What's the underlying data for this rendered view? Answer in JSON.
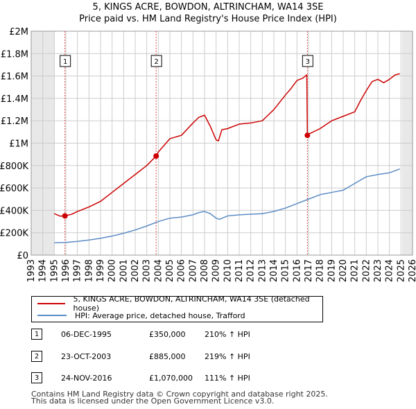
{
  "header": {
    "title_line1": "5, KINGS ACRE, BOWDON, ALTRINCHAM, WA14 3SE",
    "title_line2": "Price paid vs. HM Land Registry's House Price Index (HPI)"
  },
  "colors": {
    "property_line": "#cc0000",
    "hpi_line": "#5b8bc5",
    "grid": "#cccccc",
    "shade": "#e8e8e8",
    "marker_line": "#dd4444"
  },
  "chart_data": {
    "type": "line",
    "xlim": [
      1993,
      2026
    ],
    "ylim": [
      0,
      2000000
    ],
    "y_ticks": [
      {
        "value": 0,
        "label": "£0"
      },
      {
        "value": 200000,
        "label": "£200K"
      },
      {
        "value": 400000,
        "label": "£400K"
      },
      {
        "value": 600000,
        "label": "£600K"
      },
      {
        "value": 800000,
        "label": "£800K"
      },
      {
        "value": 1000000,
        "label": "£1M"
      },
      {
        "value": 1200000,
        "label": "£1.2M"
      },
      {
        "value": 1400000,
        "label": "£1.4M"
      },
      {
        "value": 1600000,
        "label": "£1.6M"
      },
      {
        "value": 1800000,
        "label": "£1.8M"
      },
      {
        "value": 2000000,
        "label": "£2M"
      }
    ],
    "x_ticks": [
      "1993",
      "1994",
      "1995",
      "1996",
      "1997",
      "1998",
      "1999",
      "2000",
      "2001",
      "2002",
      "2003",
      "2004",
      "2005",
      "2006",
      "2007",
      "2008",
      "2009",
      "2010",
      "2011",
      "2012",
      "2013",
      "2014",
      "2015",
      "2016",
      "2017",
      "2018",
      "2019",
      "2020",
      "2021",
      "2022",
      "2023",
      "2024",
      "2025",
      "2026"
    ],
    "shaded_ranges": [
      [
        1993,
        1995.0
      ],
      [
        2025.1,
        2026
      ]
    ],
    "series": [
      {
        "name": "5, KINGS ACRE, BOWDON, ALTRINCHAM, WA14 3SE (detached house)",
        "color": "#cc0000",
        "x": [
          1995.0,
          1995.5,
          1995.92,
          1996.5,
          1997,
          1998,
          1999,
          2000,
          2001,
          2002,
          2003,
          2003.81,
          2004,
          2004.5,
          2005,
          2006,
          2007,
          2007.5,
          2008,
          2008.5,
          2009,
          2009.2,
          2009.5,
          2010,
          2011,
          2012,
          2013,
          2014,
          2015,
          2015.5,
          2016,
          2016.5,
          2016.85,
          2016.9,
          2017,
          2018,
          2019,
          2020,
          2021,
          2021.5,
          2022,
          2022.5,
          2023,
          2023.5,
          2024,
          2024.5,
          2024.9
        ],
        "values": [
          370000,
          348000,
          350000,
          365000,
          390000,
          430000,
          480000,
          560000,
          640000,
          720000,
          800000,
          885000,
          920000,
          980000,
          1040000,
          1070000,
          1180000,
          1230000,
          1250000,
          1150000,
          1030000,
          1020000,
          1120000,
          1130000,
          1170000,
          1180000,
          1200000,
          1300000,
          1430000,
          1490000,
          1560000,
          1580000,
          1610000,
          1070000,
          1080000,
          1130000,
          1200000,
          1240000,
          1280000,
          1380000,
          1470000,
          1550000,
          1570000,
          1540000,
          1570000,
          1610000,
          1620000
        ]
      },
      {
        "name": "HPI: Average price, detached house, Trafford",
        "color": "#5b8bc5",
        "x": [
          1995.0,
          1996,
          1997,
          1998,
          1999,
          2000,
          2001,
          2002,
          2003,
          2004,
          2005,
          2006,
          2007,
          2007.5,
          2008,
          2008.5,
          2009,
          2009.3,
          2010,
          2011,
          2012,
          2013,
          2014,
          2015,
          2016,
          2017,
          2018,
          2019,
          2020,
          2021,
          2022,
          2023,
          2024,
          2024.9
        ],
        "values": [
          110000,
          113000,
          122000,
          135000,
          150000,
          170000,
          195000,
          225000,
          260000,
          300000,
          330000,
          340000,
          360000,
          380000,
          390000,
          370000,
          330000,
          320000,
          350000,
          360000,
          365000,
          370000,
          390000,
          420000,
          460000,
          500000,
          540000,
          560000,
          580000,
          640000,
          700000,
          720000,
          735000,
          770000
        ]
      }
    ],
    "sales": [
      {
        "num": "1",
        "x": 1995.92,
        "value": 350000
      },
      {
        "num": "2",
        "x": 2003.81,
        "value": 885000
      },
      {
        "num": "3",
        "x": 2016.9,
        "value": 1070000
      }
    ]
  },
  "legend": {
    "property_label": "5, KINGS ACRE, BOWDON, ALTRINCHAM, WA14 3SE (detached house)",
    "hpi_label": "HPI: Average price, detached house, Trafford"
  },
  "sales_table": [
    {
      "num": "1",
      "date": "06-DEC-1995",
      "price": "£350,000",
      "hpi": "210% ↑ HPI"
    },
    {
      "num": "2",
      "date": "23-OCT-2003",
      "price": "£885,000",
      "hpi": "219% ↑ HPI"
    },
    {
      "num": "3",
      "date": "24-NOV-2016",
      "price": "£1,070,000",
      "hpi": "111% ↑ HPI"
    }
  ],
  "footer": {
    "line1": "Contains HM Land Registry data © Crown copyright and database right 2025.",
    "line2": "This data is licensed under the Open Government Licence v3.0."
  }
}
